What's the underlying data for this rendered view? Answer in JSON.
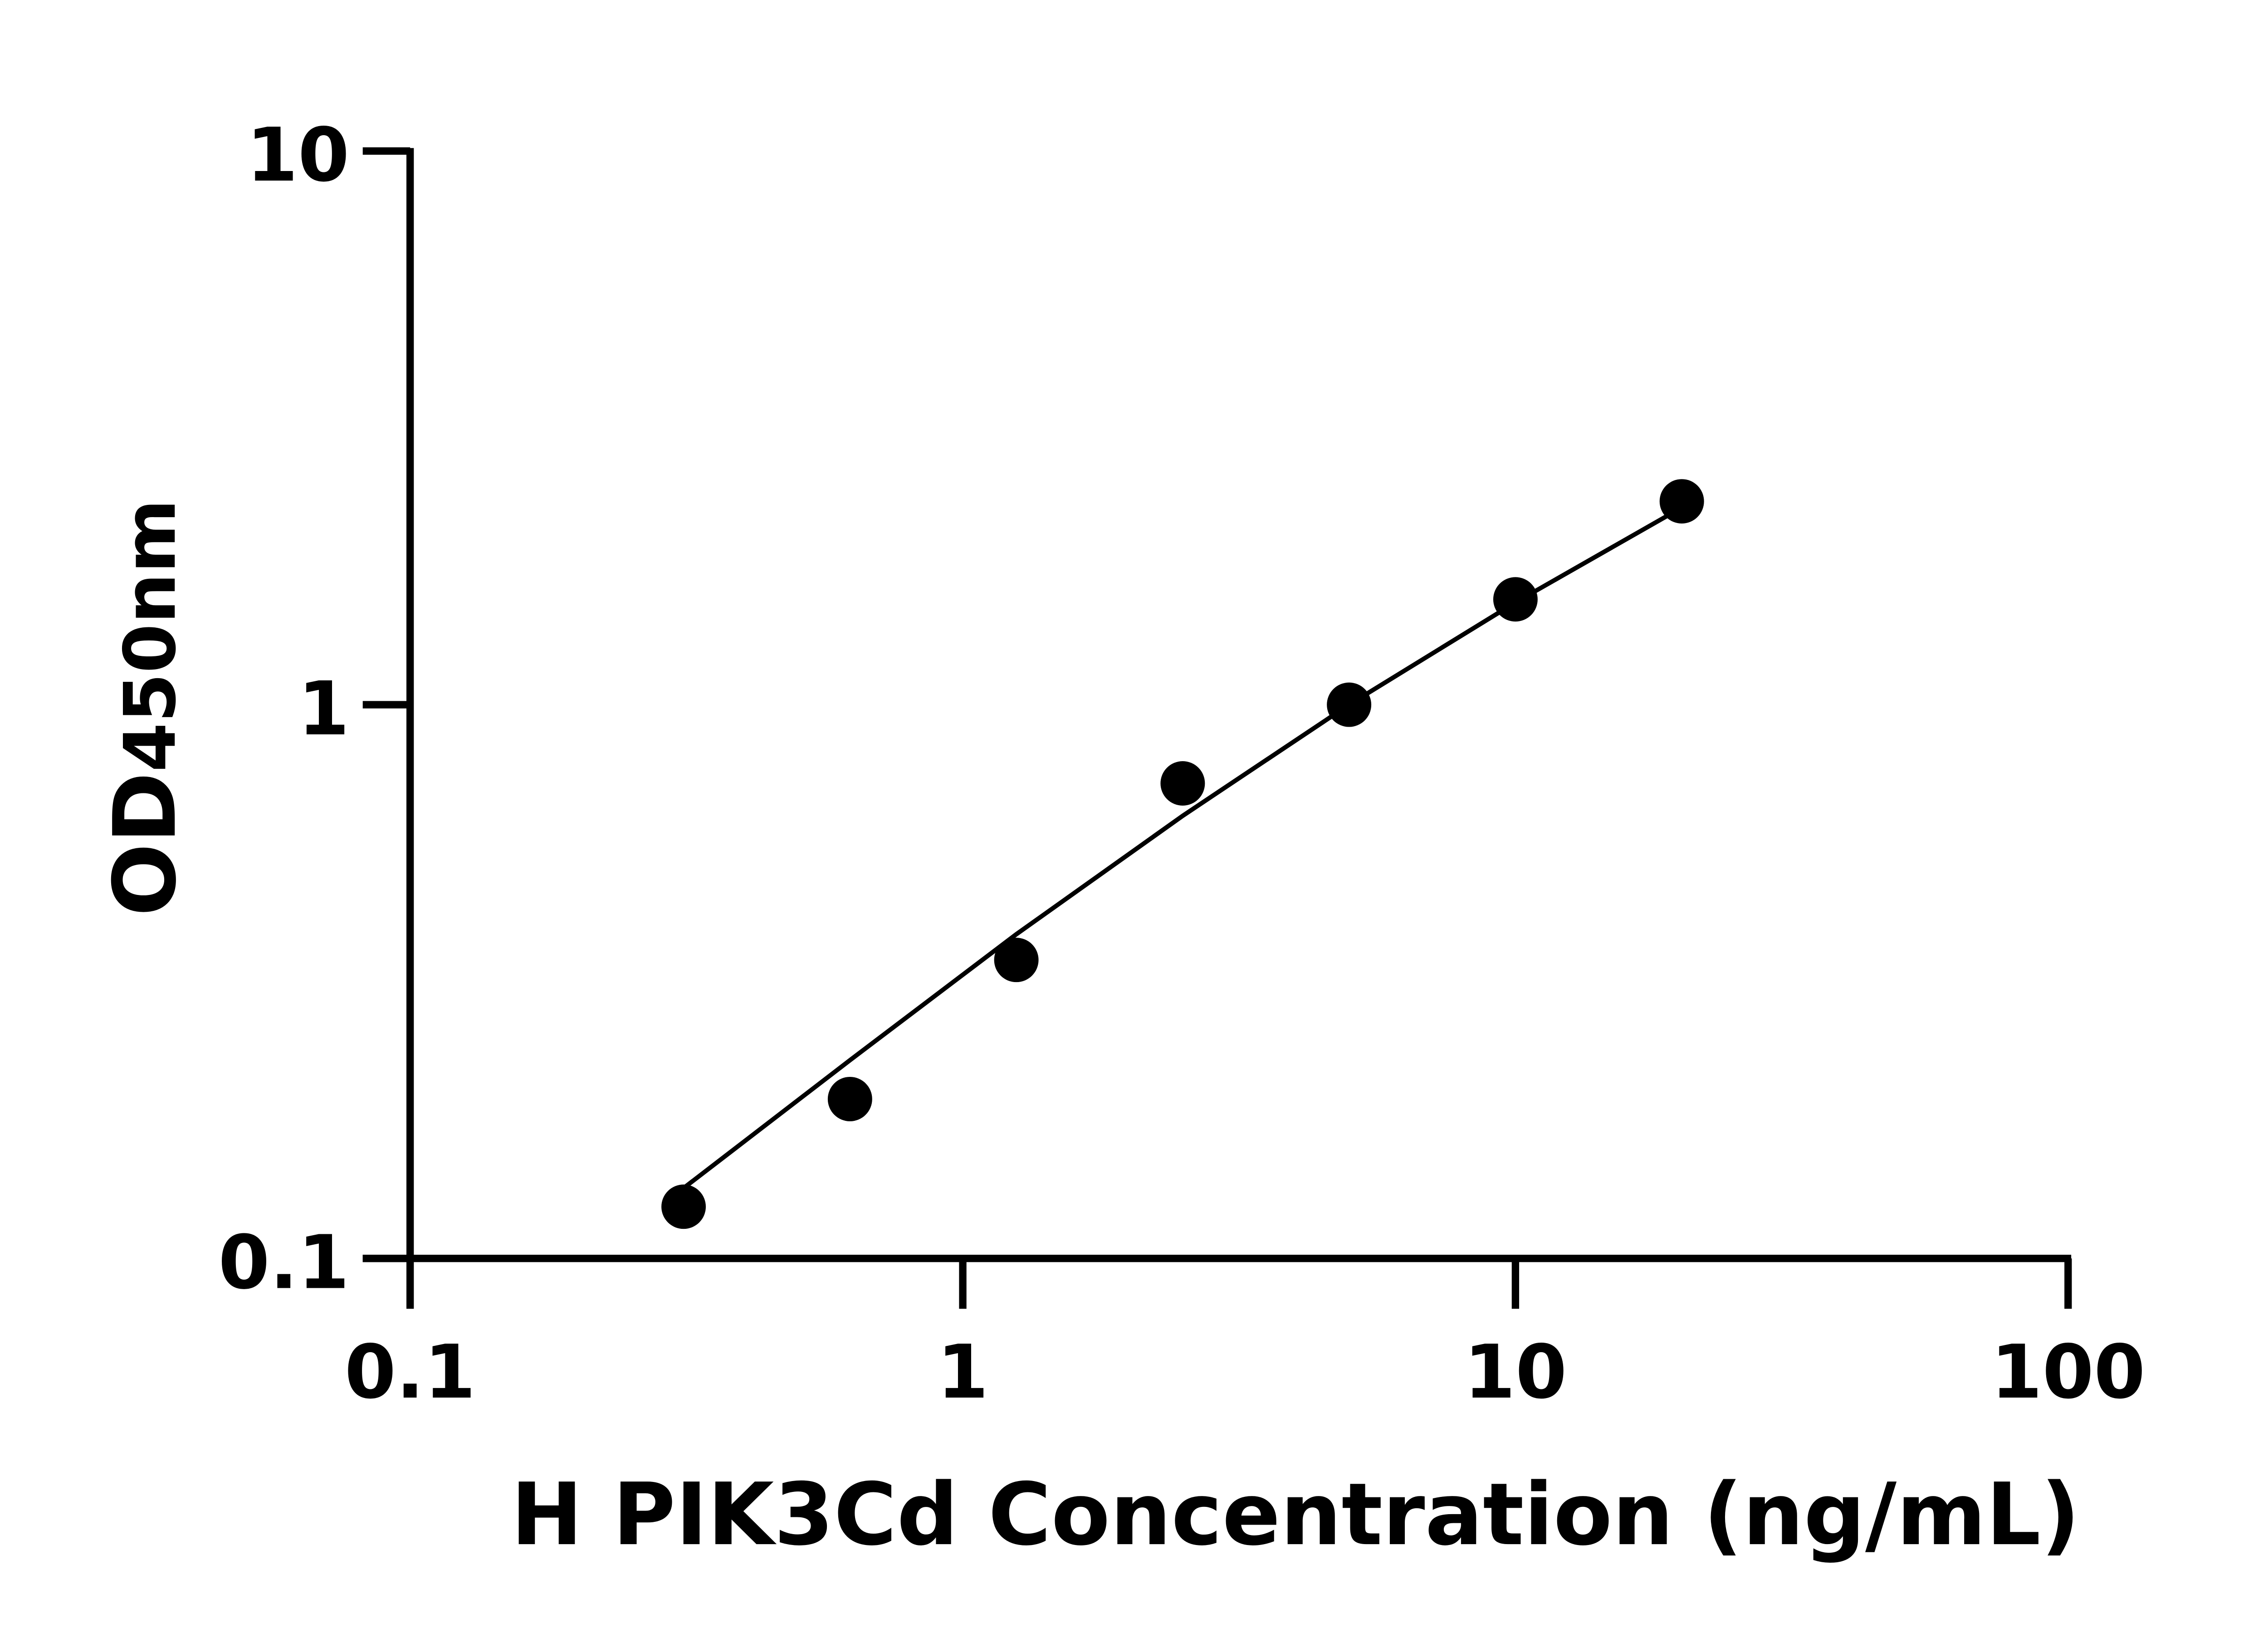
{
  "chart_data": {
    "type": "scatter",
    "title": "",
    "xlabel": "H PIK3Cd Concentration (ng/mL)",
    "ylabel_main": "OD",
    "ylabel_sub": "450nm",
    "x_scale": "log",
    "y_scale": "log",
    "xlim": [
      0.1,
      100
    ],
    "ylim": [
      0.1,
      10
    ],
    "x_ticks": [
      "0.1",
      "1",
      "10",
      "100"
    ],
    "y_ticks": [
      "0.1",
      "1",
      "10"
    ],
    "grid": false,
    "legend": "none",
    "series": [
      {
        "x": [
          0.3125,
          0.625,
          1.25,
          2.5,
          5,
          10,
          20
        ],
        "y": [
          0.124,
          0.194,
          0.346,
          0.721,
          1.0,
          1.55,
          2.33
        ]
      }
    ],
    "fit_curve": {
      "x": [
        0.3125,
        0.625,
        1.25,
        2.5,
        5,
        10,
        20
      ],
      "y": [
        0.134,
        0.228,
        0.385,
        0.63,
        1.0,
        1.53,
        2.27
      ]
    },
    "colors": {
      "points": "#000000",
      "line": "#000000"
    }
  }
}
